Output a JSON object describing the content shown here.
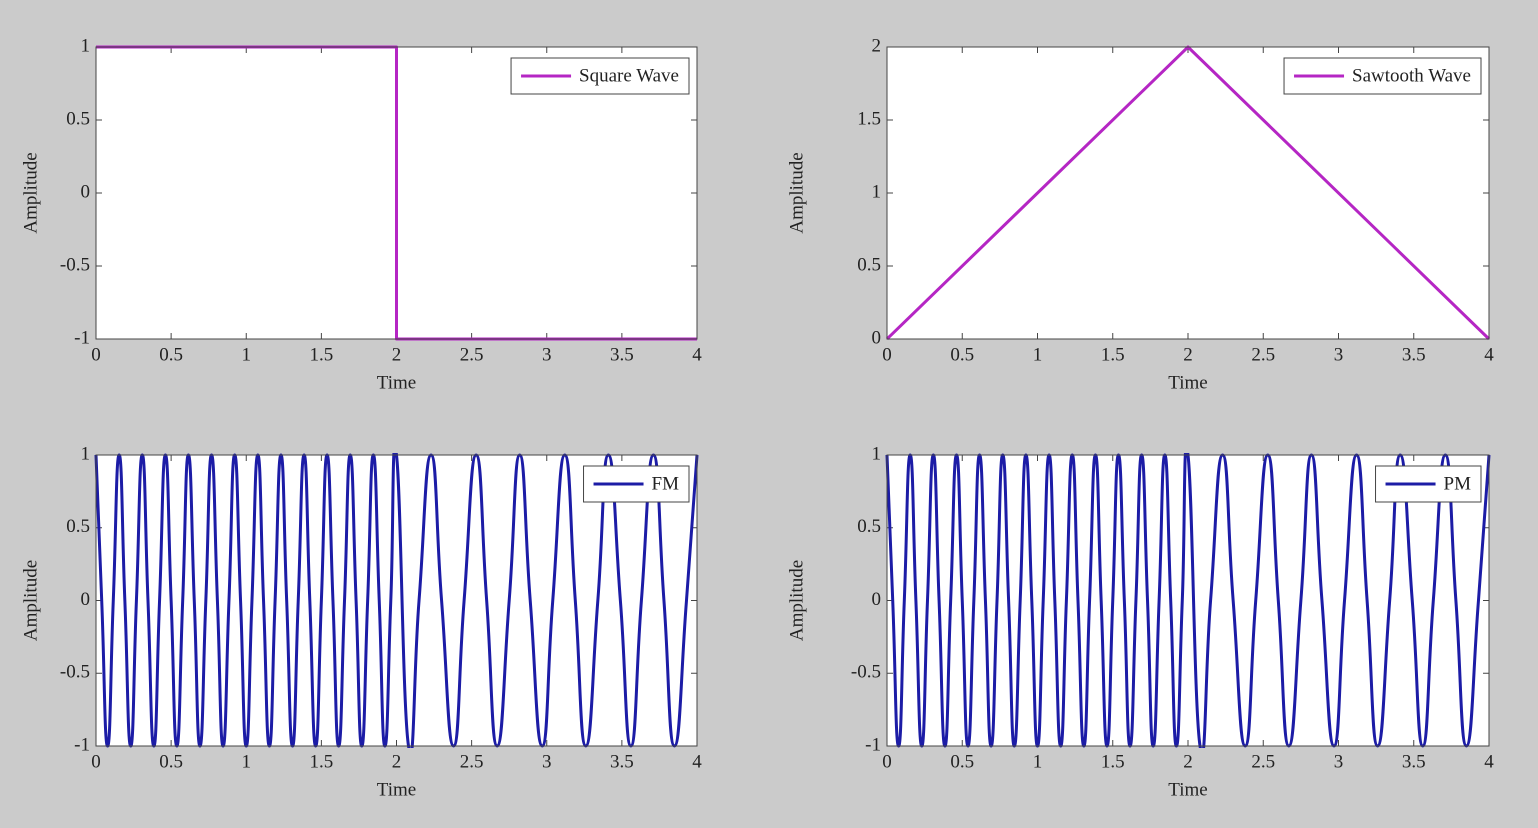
{
  "chart_data": [
    {
      "type": "line",
      "xlabel": "Time",
      "ylabel": "Amplitude",
      "legend": "upper right",
      "x": [
        0,
        2,
        2,
        4
      ],
      "series": [
        {
          "name": "Square Wave",
          "color": "#b526c4",
          "values": [
            1,
            1,
            -1,
            -1
          ]
        }
      ],
      "xlim": [
        0,
        4
      ],
      "ylim": [
        -1,
        1
      ],
      "xticks": [
        0,
        0.5,
        1,
        1.5,
        2,
        2.5,
        3,
        3.5,
        4
      ],
      "yticks": [
        -1,
        -0.5,
        0,
        0.5,
        1
      ]
    },
    {
      "type": "line",
      "xlabel": "Time",
      "ylabel": "Amplitude",
      "legend": "upper right",
      "x": [
        0,
        2,
        4
      ],
      "series": [
        {
          "name": "Sawtooth Wave",
          "color": "#b526c4",
          "values": [
            0,
            2,
            0
          ]
        }
      ],
      "xlim": [
        0,
        4
      ],
      "ylim": [
        0,
        2
      ],
      "xticks": [
        0,
        0.5,
        1,
        1.5,
        2,
        2.5,
        3,
        3.5,
        4
      ],
      "yticks": [
        0,
        0.5,
        1,
        1.5,
        2
      ]
    },
    {
      "type": "line",
      "xlabel": "Time",
      "ylabel": "Amplitude",
      "legend": "upper right",
      "x": [
        0,
        0.038,
        0.077,
        0.115,
        0.154,
        0.192,
        0.231,
        0.269,
        0.308,
        0.346,
        0.385,
        0.423,
        0.462,
        0.5,
        0.538,
        0.577,
        0.615,
        0.654,
        0.692,
        0.731,
        0.769,
        0.808,
        0.846,
        0.885,
        0.923,
        0.962,
        1,
        1.038,
        1.077,
        1.115,
        1.154,
        1.192,
        1.231,
        1.269,
        1.308,
        1.346,
        1.385,
        1.423,
        1.462,
        1.5,
        1.538,
        1.577,
        1.615,
        1.654,
        1.692,
        1.731,
        1.769,
        1.808,
        1.846,
        1.885,
        1.923,
        1.962,
        2,
        2.08,
        2.15,
        2.23,
        2.3,
        2.38,
        2.45,
        2.53,
        2.6,
        2.67,
        2.75,
        2.82,
        2.89,
        2.97,
        3.04,
        3.12,
        3.19,
        3.26,
        3.34,
        3.41,
        3.49,
        3.56,
        3.63,
        3.71,
        3.78,
        3.85,
        3.93,
        4
      ],
      "series": [
        {
          "name": "FM",
          "color": "#1c1ca6",
          "values": [
            1,
            0,
            -1,
            0,
            1,
            0,
            -1,
            0,
            1,
            0,
            -1,
            0,
            1,
            0,
            -1,
            0,
            1,
            0,
            -1,
            0,
            1,
            0,
            -1,
            0,
            1,
            0,
            -1,
            0,
            1,
            0,
            -1,
            0,
            1,
            0,
            -1,
            0,
            1,
            0,
            -1,
            0,
            1,
            0,
            -1,
            0,
            1,
            0,
            -1,
            0,
            1,
            0,
            -1,
            0,
            1,
            -1,
            0,
            1,
            0,
            -1,
            0,
            1,
            0,
            -1,
            0,
            1,
            0,
            -1,
            0,
            1,
            0,
            -1,
            0,
            1,
            0,
            -1,
            0,
            1,
            0,
            -1,
            0,
            1
          ]
        }
      ],
      "xlim": [
        0,
        4
      ],
      "ylim": [
        -1,
        1
      ],
      "xticks": [
        0,
        0.5,
        1,
        1.5,
        2,
        2.5,
        3,
        3.5,
        4
      ],
      "yticks": [
        -1,
        -0.5,
        0,
        0.5,
        1
      ]
    },
    {
      "type": "line",
      "xlabel": "Time",
      "ylabel": "Amplitude",
      "legend": "upper right",
      "x": [
        0,
        0.038,
        0.077,
        0.115,
        0.154,
        0.192,
        0.231,
        0.269,
        0.308,
        0.346,
        0.385,
        0.423,
        0.462,
        0.5,
        0.538,
        0.577,
        0.615,
        0.654,
        0.692,
        0.731,
        0.769,
        0.808,
        0.846,
        0.885,
        0.923,
        0.962,
        1,
        1.038,
        1.077,
        1.115,
        1.154,
        1.192,
        1.231,
        1.269,
        1.308,
        1.346,
        1.385,
        1.423,
        1.462,
        1.5,
        1.538,
        1.577,
        1.615,
        1.654,
        1.692,
        1.731,
        1.769,
        1.808,
        1.846,
        1.885,
        1.923,
        1.962,
        2,
        2.08,
        2.15,
        2.23,
        2.3,
        2.38,
        2.45,
        2.53,
        2.6,
        2.67,
        2.75,
        2.82,
        2.89,
        2.97,
        3.04,
        3.12,
        3.19,
        3.26,
        3.34,
        3.41,
        3.49,
        3.56,
        3.63,
        3.71,
        3.78,
        3.85,
        3.93,
        4
      ],
      "series": [
        {
          "name": "PM",
          "color": "#1c1ca6",
          "values": [
            1,
            0,
            -1,
            0,
            1,
            0,
            -1,
            0,
            1,
            0,
            -1,
            0,
            1,
            0,
            -1,
            0,
            1,
            0,
            -1,
            0,
            1,
            0,
            -1,
            0,
            1,
            0,
            -1,
            0,
            1,
            0,
            -1,
            0,
            1,
            0,
            -1,
            0,
            1,
            0,
            -1,
            0,
            1,
            0,
            -1,
            0,
            1,
            0,
            -1,
            0,
            1,
            0,
            -1,
            0,
            1,
            -1,
            0,
            1,
            0,
            -1,
            0,
            1,
            0,
            -1,
            0,
            1,
            0,
            -1,
            0,
            1,
            0,
            -1,
            0,
            1,
            0,
            -1,
            0,
            1,
            0,
            -1,
            0,
            1
          ]
        }
      ],
      "xlim": [
        0,
        4
      ],
      "ylim": [
        -1,
        1
      ],
      "xticks": [
        0,
        0.5,
        1,
        1.5,
        2,
        2.5,
        3,
        3.5,
        4
      ],
      "yticks": [
        -1,
        -0.5,
        0,
        0.5,
        1
      ]
    }
  ]
}
